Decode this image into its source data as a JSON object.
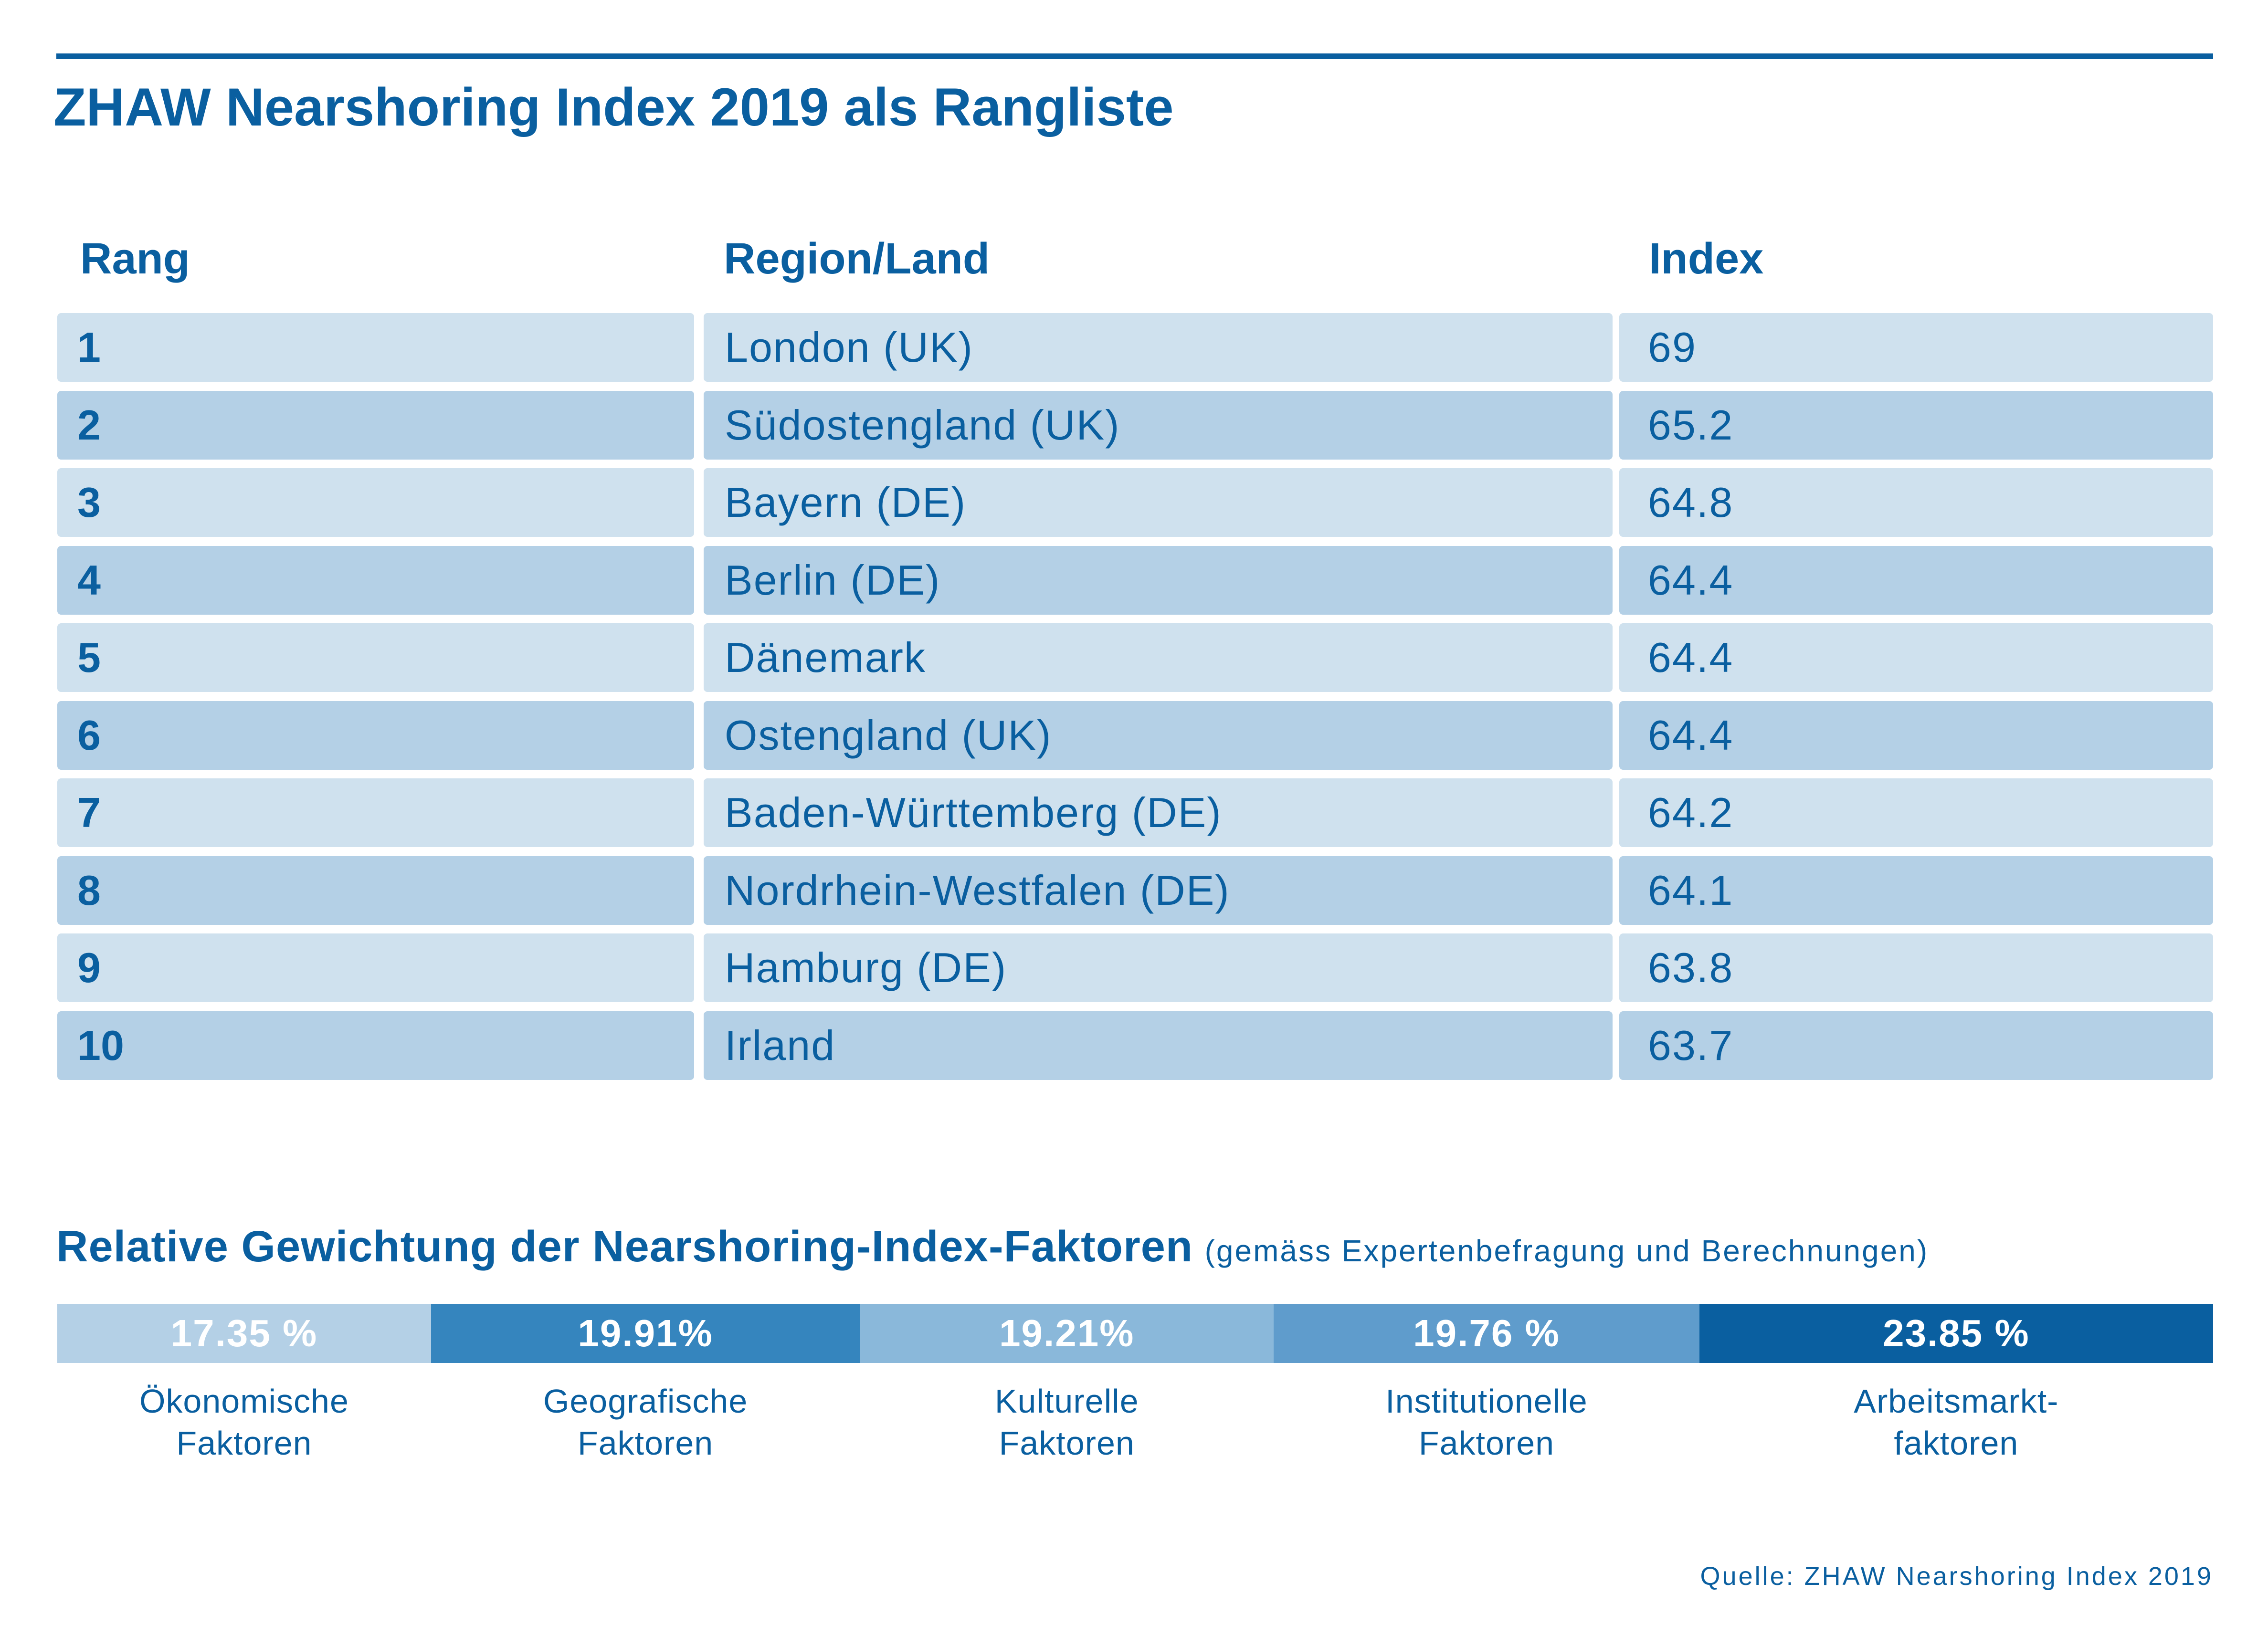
{
  "title": "ZHAW Nearshoring Index 2019 als Rangliste",
  "table": {
    "headers": [
      "Rang",
      "Region/Land",
      "Index"
    ],
    "rows": [
      {
        "rank": "1",
        "region": "London (UK)",
        "index": "69"
      },
      {
        "rank": "2",
        "region": "Südostengland (UK)",
        "index": "65.2"
      },
      {
        "rank": "3",
        "region": "Bayern (DE)",
        "index": "64.8"
      },
      {
        "rank": "4",
        "region": "Berlin (DE)",
        "index": "64.4"
      },
      {
        "rank": "5",
        "region": "Dänemark",
        "index": "64.4"
      },
      {
        "rank": "6",
        "region": "Ostengland (UK)",
        "index": "64.4"
      },
      {
        "rank": "7",
        "region": "Baden-Württemberg (DE)",
        "index": "64.2"
      },
      {
        "rank": "8",
        "region": "Nordrhein-Westfalen (DE)",
        "index": "64.1"
      },
      {
        "rank": "9",
        "region": "Hamburg (DE)",
        "index": "63.8"
      },
      {
        "rank": "10",
        "region": "Irland",
        "index": "63.7"
      }
    ]
  },
  "weighting": {
    "title": "Relative Gewichtung der Nearshoring-Index-Faktoren",
    "note": "(gemäss Expertenbefragung und Berechnungen)",
    "segments": [
      {
        "label": "17.35 %",
        "line1": "Ökonomische",
        "line2": "Faktoren",
        "value": 17.35,
        "color": "#b4d0e6"
      },
      {
        "label": "19.91%",
        "line1": "Geografische",
        "line2": "Faktoren",
        "value": 19.91,
        "color": "#3585be"
      },
      {
        "label": "19.21%",
        "line1": "Kulturelle",
        "line2": "Faktoren",
        "value": 19.21,
        "color": "#8ab8da"
      },
      {
        "label": "19.76 %",
        "line1": "Institutionelle",
        "line2": "Faktoren",
        "value": 19.76,
        "color": "#5f9ccc"
      },
      {
        "label": "23.85 %",
        "line1": "Arbeitsmarkt-",
        "line2": "faktoren",
        "value": 23.85,
        "color": "#0a5fa0"
      }
    ]
  },
  "source": "Quelle: ZHAW Nearshoring Index 2019",
  "colors": {
    "brand": "#0a5fa0",
    "row_light": "#cfe1ee",
    "row_dark": "#b4d0e6"
  },
  "chart_data": {
    "type": "table",
    "title": "ZHAW Nearshoring Index 2019 als Rangliste",
    "columns": [
      "Rang",
      "Region/Land",
      "Index"
    ],
    "rows": [
      [
        1,
        "London (UK)",
        69
      ],
      [
        2,
        "Südostengland (UK)",
        65.2
      ],
      [
        3,
        "Bayern (DE)",
        64.8
      ],
      [
        4,
        "Berlin (DE)",
        64.4
      ],
      [
        5,
        "Dänemark",
        64.4
      ],
      [
        6,
        "Ostengland (UK)",
        64.4
      ],
      [
        7,
        "Baden-Württemberg (DE)",
        64.2
      ],
      [
        8,
        "Nordrhein-Westfalen (DE)",
        64.1
      ],
      [
        9,
        "Hamburg (DE)",
        63.8
      ],
      [
        10,
        "Irland",
        63.7
      ]
    ],
    "weighting": {
      "type": "bar",
      "stacked": true,
      "title": "Relative Gewichtung der Nearshoring-Index-Faktoren",
      "categories": [
        "Ökonomische Faktoren",
        "Geografische Faktoren",
        "Kulturelle Faktoren",
        "Institutionelle Faktoren",
        "Arbeitsmarktfaktoren"
      ],
      "values": [
        17.35,
        19.91,
        19.21,
        19.76,
        23.85
      ],
      "unit": "%"
    }
  }
}
